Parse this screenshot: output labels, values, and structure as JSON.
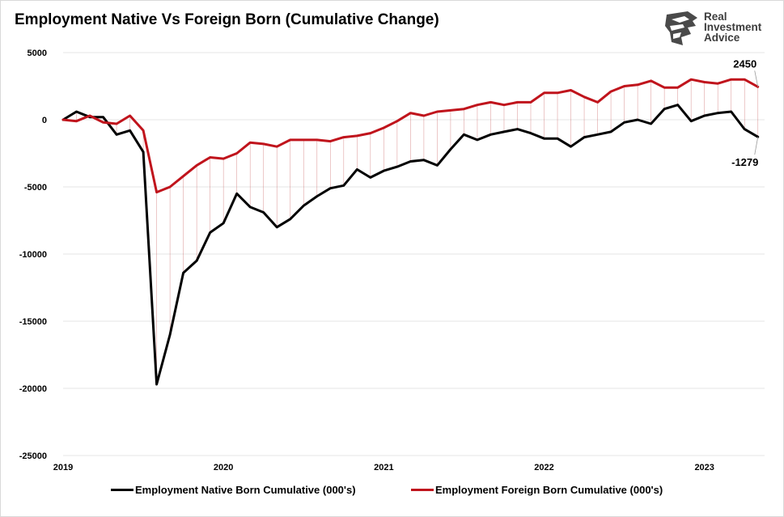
{
  "title": "Employment Native Vs Foreign Born (Cumulative Change)",
  "logo": {
    "lines": [
      "Real",
      "Investment",
      "Advice"
    ]
  },
  "colors": {
    "native": "#000000",
    "foreign": "#c0141c",
    "grid": "#e6e6e6"
  },
  "chart_data": {
    "type": "line",
    "ylim": [
      -25000,
      5000
    ],
    "yticks": [
      5000,
      0,
      -5000,
      -10000,
      -15000,
      -20000,
      -25000
    ],
    "ytick_labels": [
      "5000",
      "0",
      "-5000",
      "-10000",
      "-15000",
      "-20000",
      "-25000"
    ],
    "xticks": [
      "2019",
      "2020",
      "2021",
      "2022",
      "2023"
    ],
    "xlim": [
      "2019-01",
      "2023-05"
    ],
    "grid": true,
    "legend": "bottom",
    "x": [
      "2019-01",
      "2019-02",
      "2019-03",
      "2019-04",
      "2019-05",
      "2019-06",
      "2019-07",
      "2019-08",
      "2019-09",
      "2019-10",
      "2019-11",
      "2019-12",
      "2020-01",
      "2020-02",
      "2020-03",
      "2020-04",
      "2020-05",
      "2020-06",
      "2020-07",
      "2020-08",
      "2020-09",
      "2020-10",
      "2020-11",
      "2020-12",
      "2021-01",
      "2021-02",
      "2021-03",
      "2021-04",
      "2021-05",
      "2021-06",
      "2021-07",
      "2021-08",
      "2021-09",
      "2021-10",
      "2021-11",
      "2021-12",
      "2022-01",
      "2022-02",
      "2022-03",
      "2022-04",
      "2022-05",
      "2022-06",
      "2022-07",
      "2022-08",
      "2022-09",
      "2022-10",
      "2022-11",
      "2022-12",
      "2023-01",
      "2023-02",
      "2023-03",
      "2023-04",
      "2023-05"
    ],
    "series": [
      {
        "name": "Employment Native Born Cumulative (000's)",
        "values": [
          0,
          600,
          200,
          200,
          -1100,
          -800,
          -2400,
          -19700,
          -16000,
          -11400,
          -10500,
          -8400,
          -7700,
          -5500,
          -6500,
          -6900,
          -8000,
          -7400,
          -6400,
          -5700,
          -5100,
          -4900,
          -3700,
          -4300,
          -3800,
          -3500,
          -3100,
          -3000,
          -3400,
          -2200,
          -1100,
          -1500,
          -1100,
          -900,
          -700,
          -1000,
          -1400,
          -1400,
          -2000,
          -1300,
          -1100,
          -900,
          -200,
          0,
          -300,
          800,
          1100,
          -100,
          300,
          500,
          600,
          -700,
          -1279
        ]
      },
      {
        "name": "Employment Foreign Born Cumulative (000's)",
        "values": [
          0,
          -100,
          300,
          -200,
          -300,
          300,
          -800,
          -5400,
          -5000,
          -4200,
          -3400,
          -2800,
          -2900,
          -2500,
          -1700,
          -1800,
          -2000,
          -1500,
          -1500,
          -1500,
          -1600,
          -1300,
          -1200,
          -1000,
          -600,
          -100,
          500,
          300,
          600,
          700,
          800,
          1100,
          1300,
          1100,
          1300,
          1300,
          2000,
          2000,
          2200,
          1700,
          1300,
          2100,
          2500,
          2600,
          2900,
          2400,
          2400,
          3000,
          2800,
          2700,
          3000,
          3000,
          2450
        ]
      }
    ],
    "annotations": [
      {
        "text": "2450",
        "series": 1,
        "index": 52
      },
      {
        "text": "-1279",
        "series": 0,
        "index": 52
      }
    ]
  }
}
